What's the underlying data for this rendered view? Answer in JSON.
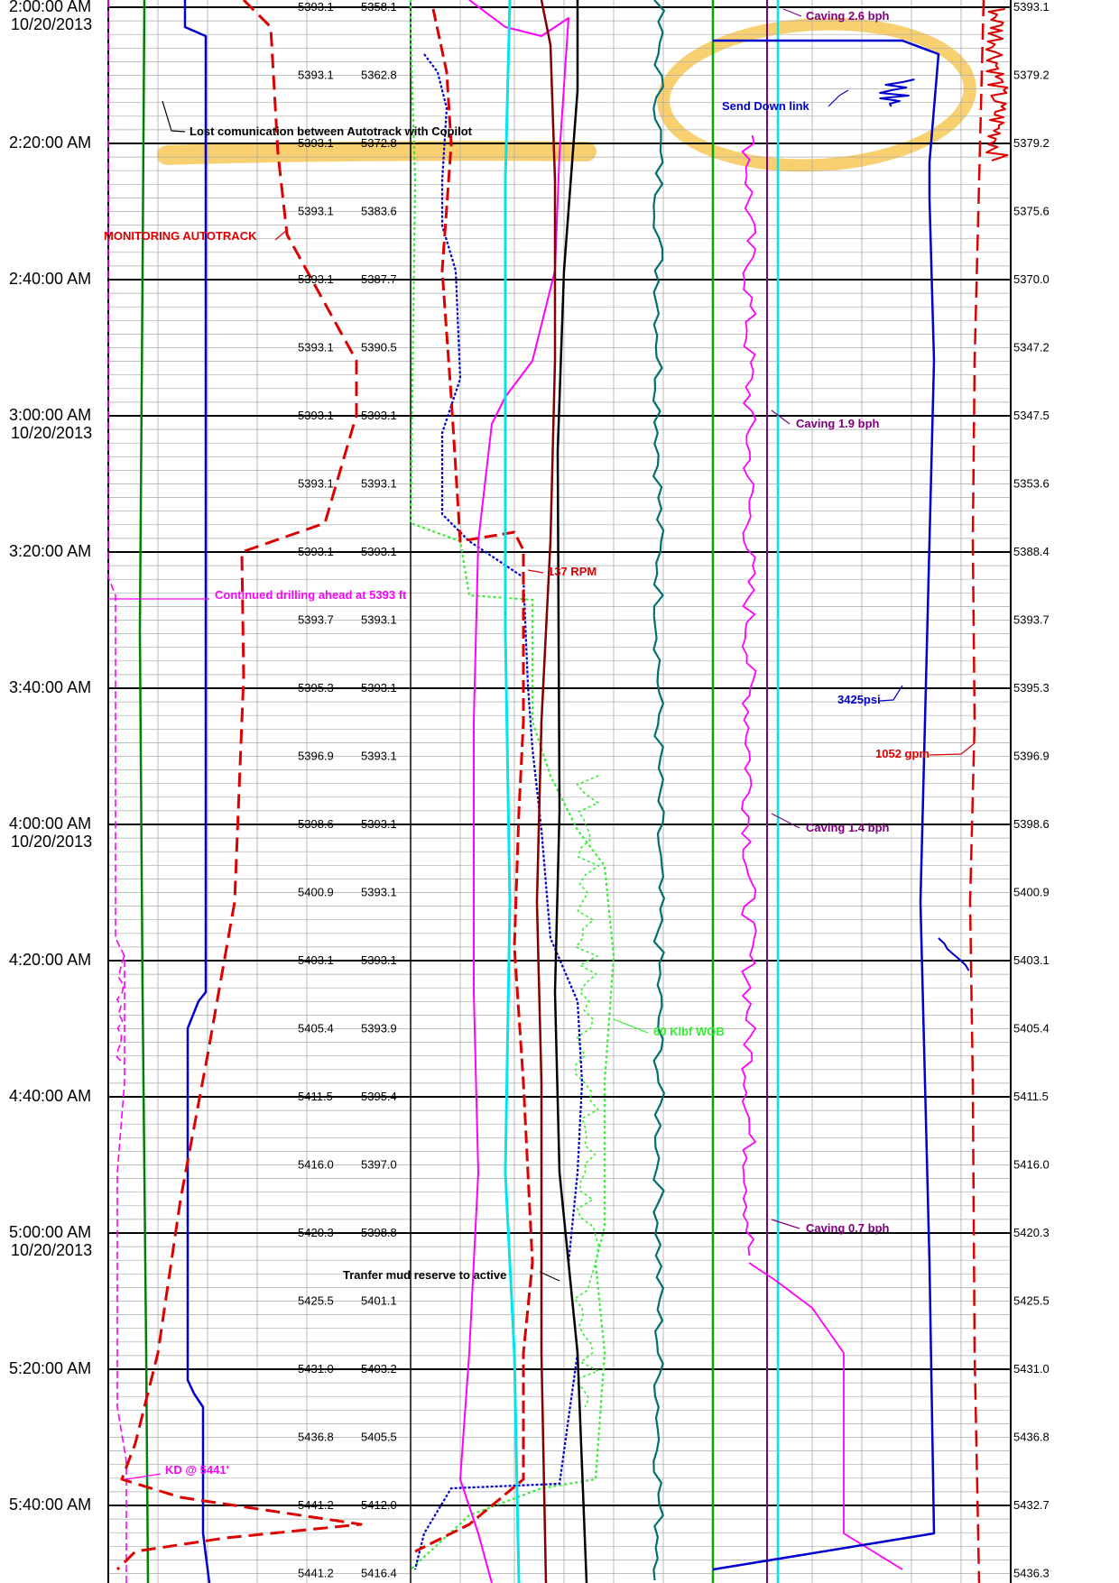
{
  "chart_data": {
    "type": "line",
    "date_label": "10/20/2013",
    "time_ticks": [
      "2:00:00 AM",
      "2:20:00 AM",
      "2:40:00 AM",
      "3:00:00 AM",
      "3:20:00 AM",
      "3:40:00 AM",
      "4:00:00 AM",
      "4:20:00 AM",
      "4:40:00 AM",
      "5:00:00 AM",
      "5:20:00 AM",
      "5:40:00 AM"
    ],
    "time_tick_dates": [
      "10/20/2013",
      "",
      "",
      "10/20/2013",
      "",
      "",
      "10/20/2013",
      "",
      "",
      "10/20/2013",
      "",
      ""
    ],
    "depth_bit": [
      "5393.1",
      "5393.1",
      "5393.1",
      "5393.1",
      "5393.1",
      "5393.1",
      "5393.1",
      "5393.1",
      "5393.1",
      "5393.7",
      "5395.3",
      "5396.9",
      "5398.6",
      "5400.9",
      "5403.1",
      "5405.4",
      "5411.5",
      "5416.0",
      "5420.3",
      "5425.5",
      "5431.0",
      "5436.8",
      "5441.2",
      "5441.2"
    ],
    "depth_hole": [
      "5358.1",
      "5362.8",
      "5372.8",
      "5383.6",
      "5387.7",
      "5390.5",
      "5393.1",
      "5393.1",
      "5393.1",
      "5393.1",
      "5393.1",
      "5393.1",
      "5393.1",
      "5393.1",
      "5393.1",
      "5393.9",
      "5395.4",
      "5397.0",
      "5398.8",
      "5401.1",
      "5403.2",
      "5405.5",
      "5412.0",
      "5416.4"
    ],
    "right_track_values": [
      "5393.1",
      "5379.2",
      "5379.2",
      "5375.6",
      "5370.0",
      "5347.2",
      "5347.5",
      "5353.6",
      "5388.4",
      "5393.7",
      "5395.3",
      "5396.9",
      "5398.6",
      "5400.9",
      "5403.1",
      "5405.4",
      "5411.5",
      "5416.0",
      "5420.3",
      "5425.5",
      "5431.0",
      "5436.8",
      "5432.7",
      "5436.3"
    ],
    "annotations": {
      "lost_comm": "Lost comunication between Autotrack with Copilot",
      "monitoring": "MONITORING AUTOTRACK",
      "continued": "Continued drilling ahead at  5393 ft",
      "kd": "KD @ 5441'",
      "rpm": "137 RPM",
      "wob": "60 Klbf WOB",
      "transfer": "Tranfer mud reserve to active",
      "send_down": "Send Down link",
      "caving1": "Caving 2.6 bph",
      "caving2": "Caving 1.9 bph",
      "caving3": "Caving  1.4 bph",
      "caving4": "Caving  0.7  bph",
      "spp": "3425psi",
      "flow": "1052 gpm"
    },
    "colors": {
      "magenta": "#ff00ff",
      "green": "#008000",
      "blue": "#0000cc",
      "red": "#dd0000",
      "bright_green": "#33ee33",
      "cyan": "#00e5ee",
      "brown": "#800000",
      "teal": "#007070",
      "purple": "#800080",
      "highlight": "#f5c040"
    }
  }
}
